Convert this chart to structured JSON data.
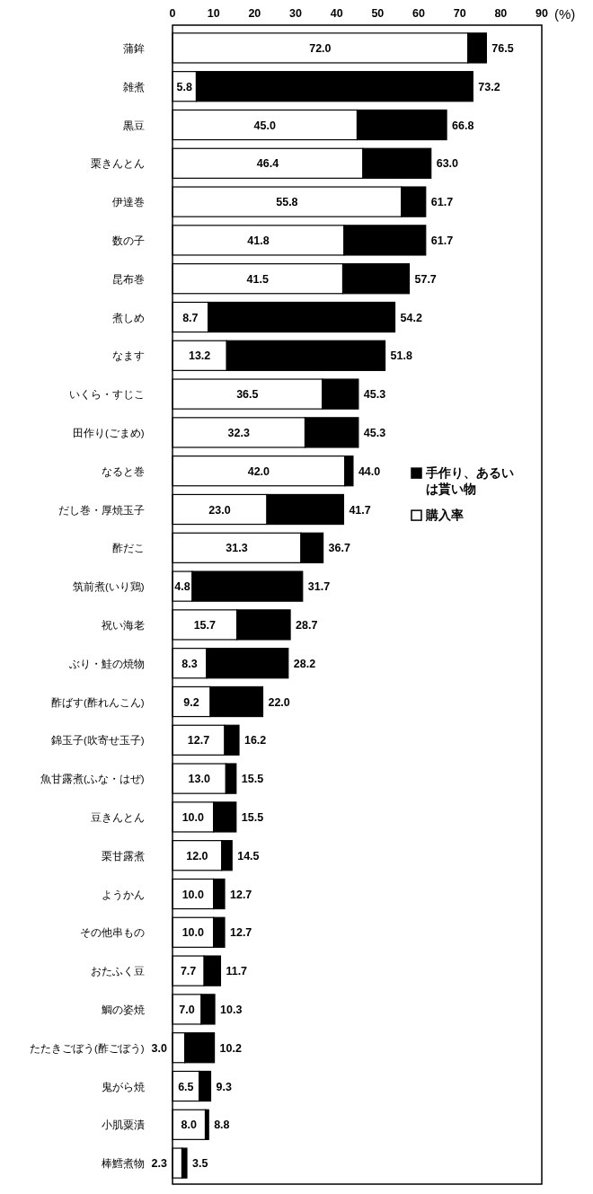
{
  "chart_data": {
    "type": "bar",
    "orientation": "horizontal",
    "stacked": true,
    "xlabel": "(%)",
    "categories": [
      "蒲鉾",
      "雑煮",
      "黒豆",
      "栗きんとん",
      "伊達巻",
      "数の子",
      "昆布巻",
      "煮しめ",
      "なます",
      "いくら・すじこ",
      "田作り(ごまめ)",
      "なると巻",
      "だし巻・厚焼玉子",
      "酢だこ",
      "筑前煮(いり鶏)",
      "祝い海老",
      "ぶり・鮭の焼物",
      "酢ばす(酢れんこん)",
      "錦玉子(吹寄せ玉子)",
      "魚甘露煮(ふな・はぜ)",
      "豆きんとん",
      "栗甘露煮",
      "ようかん",
      "その他串もの",
      "おたふく豆",
      "鯛の姿焼",
      "たたきごぼう(酢ごぼう)",
      "鬼がら焼",
      "小肌粟漬",
      "棒鱈煮物"
    ],
    "series": [
      {
        "name": "購入率",
        "color": "#ffffff",
        "values": [
          72.0,
          5.8,
          45.0,
          46.4,
          55.8,
          41.8,
          41.5,
          8.7,
          13.2,
          36.5,
          32.3,
          42.0,
          23.0,
          31.3,
          4.8,
          15.7,
          8.3,
          9.2,
          12.7,
          13.0,
          10.0,
          12.0,
          10.0,
          10.0,
          7.7,
          7.0,
          3.0,
          6.5,
          8.0,
          2.3
        ],
        "value_labels": [
          "72.0",
          "5.8",
          "45.0",
          "46.4",
          "55.8",
          "41.8",
          "41.5",
          "8.7",
          "13.2",
          "36.5",
          "32.3",
          "42.0",
          "23.0",
          "31.3",
          "4.8",
          "15.7",
          "8.3",
          "9.2",
          "12.7",
          "13.0",
          "10.0",
          "12.0",
          "10.0",
          "10.0",
          "7.7",
          "7.0",
          "3.0",
          "6.5",
          "8.0",
          "2.3"
        ]
      },
      {
        "name": "手作り、あるいは貰い物",
        "color": "#000000",
        "values": [
          4.5,
          67.4,
          21.8,
          16.6,
          5.9,
          19.9,
          16.2,
          45.5,
          38.6,
          8.8,
          13.0,
          2.0,
          18.7,
          5.4,
          26.9,
          13.0,
          19.9,
          12.8,
          3.5,
          2.5,
          5.5,
          2.5,
          2.7,
          2.7,
          4.0,
          3.3,
          7.2,
          2.8,
          0.8,
          1.2
        ]
      }
    ],
    "totals": [
      "76.5",
      "73.2",
      "66.8",
      "63.0",
      "61.7",
      "61.7",
      "57.7",
      "54.2",
      "51.8",
      "45.3",
      "45.3",
      "44.0",
      "41.7",
      "36.7",
      "31.7",
      "28.7",
      "28.2",
      "22.0",
      "16.2",
      "15.5",
      "15.5",
      "14.5",
      "12.7",
      "12.7",
      "11.7",
      "10.3",
      "10.2",
      "9.3",
      "8.8",
      "3.5"
    ],
    "xlim": [
      0,
      90
    ],
    "xticks": [
      0,
      10,
      20,
      30,
      40,
      50,
      60,
      70,
      80,
      90
    ],
    "legend": "right"
  }
}
